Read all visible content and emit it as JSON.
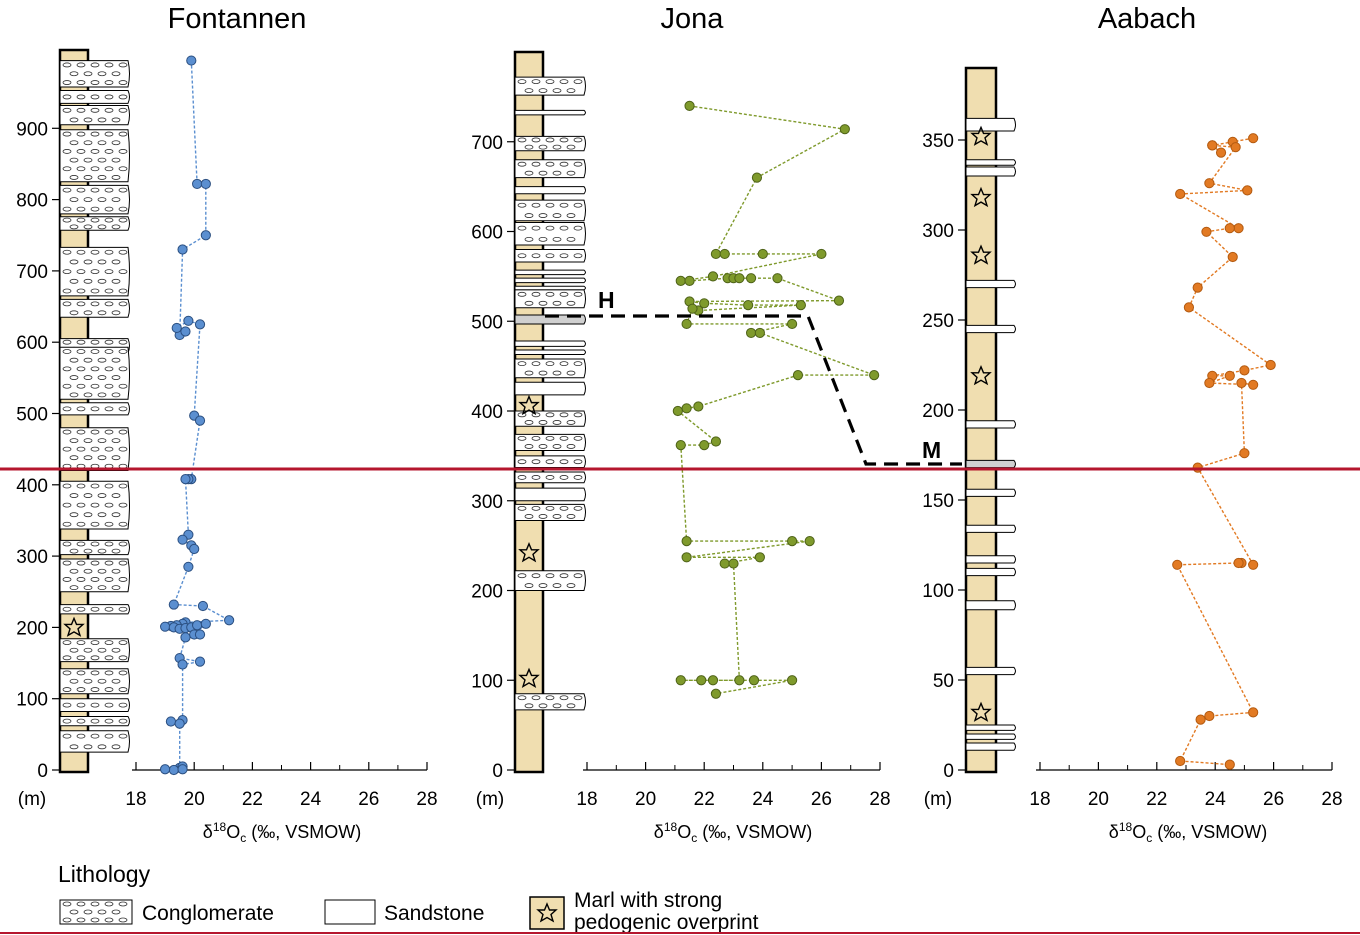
{
  "colors": {
    "marl": "#f0deb0",
    "fontannen": "#5b8fd0",
    "fontannen_edge": "#2b4f80",
    "jona": "#7f9a2c",
    "jona_edge": "#4e6218",
    "aabach": "#e27a23",
    "aabach_edge": "#b35a10",
    "boundary": "#b5162e",
    "horizon": "#000000",
    "marker_bed": "#d0d0d0"
  },
  "icons": {
    "conglomerate": "pebble-pattern",
    "sandstone": "blank-bed",
    "marl": "pedogenic-star-icon"
  },
  "legend": {
    "title": "Lithology",
    "conglomerate": "Conglomerate",
    "sandstone": "Sandstone",
    "marl_line1": "Marl with strong",
    "marl_line2": "pedogenic overprint"
  },
  "markers": {
    "H": "H",
    "M": "M"
  },
  "chart_data": [
    {
      "type": "scatter",
      "title": "Fontannen",
      "xlabel": "δ18Oc (‰, VSMOW)",
      "ylabel": "(m)",
      "xlim": [
        18,
        28
      ],
      "ylim": [
        0,
        1000
      ],
      "xticks": [
        18,
        20,
        22,
        24,
        26,
        28
      ],
      "yticks": [
        0,
        100,
        200,
        300,
        400,
        500,
        600,
        700,
        800,
        900
      ],
      "series": [
        {
          "x": [
            19.9,
            20.1,
            20.4,
            20.4,
            19.6,
            19.5,
            19.7,
            19.4,
            19.8,
            20.2,
            20.0,
            20.2,
            19.9,
            19.8,
            19.7,
            19.8,
            19.6,
            19.9,
            20.0,
            19.8,
            19.3,
            20.3,
            21.2,
            19.7,
            19.6,
            19.4,
            19.2,
            19.0,
            19.3,
            19.5,
            19.7,
            19.9,
            20.1,
            20.4,
            20.0,
            20.2,
            19.7,
            19.5,
            20.2,
            19.6,
            19.6,
            19.2,
            19.5,
            19.5,
            19.6,
            19.3,
            19.0,
            19.6
          ],
          "y": [
            995,
            822,
            822,
            750,
            730,
            610,
            615,
            620,
            630,
            625,
            497,
            490,
            408,
            408,
            408,
            330,
            323,
            315,
            310,
            285,
            232,
            230,
            210,
            207,
            205,
            203,
            202,
            201,
            200,
            198,
            199,
            200,
            203,
            205,
            190,
            190,
            186,
            157,
            152,
            148,
            70,
            68,
            65,
            3,
            5,
            0,
            1,
            1
          ]
        }
      ]
    },
    {
      "type": "scatter",
      "title": "Jona",
      "xlabel": "δ18Oc (‰, VSMOW)",
      "ylabel": "(m)",
      "xlim": [
        18,
        28
      ],
      "ylim": [
        0,
        800
      ],
      "xticks": [
        18,
        20,
        22,
        24,
        26,
        28
      ],
      "yticks": [
        0,
        100,
        200,
        300,
        400,
        500,
        600,
        700
      ],
      "series": [
        {
          "x": [
            21.5,
            26.8,
            23.8,
            22.4,
            22.7,
            24.0,
            26.0,
            22.3,
            21.2,
            21.5,
            22.8,
            23.0,
            23.2,
            23.6,
            24.5,
            26.6,
            21.5,
            22.0,
            23.5,
            25.3,
            21.8,
            21.6,
            21.4,
            25.0,
            23.6,
            23.9,
            27.8,
            25.2,
            21.8,
            21.4,
            21.1,
            22.4,
            22.0,
            21.2,
            21.4,
            25.0,
            25.6,
            21.4,
            23.9,
            22.7,
            23.0,
            23.2,
            21.2,
            21.9,
            22.3,
            23.7,
            25.0,
            22.4
          ],
          "y": [
            740,
            714,
            660,
            575,
            575,
            575,
            575,
            550,
            545,
            545,
            548,
            548,
            548,
            548,
            548,
            523,
            522,
            520,
            518,
            518,
            512,
            514,
            497,
            497,
            487,
            487,
            440,
            440,
            405,
            403,
            400,
            366,
            362,
            362,
            255,
            255,
            255,
            237,
            237,
            230,
            230,
            100,
            100,
            100,
            100,
            100,
            100,
            85
          ]
        }
      ]
    },
    {
      "type": "scatter",
      "title": "Aabach",
      "xlabel": "δ18Oc (‰, VSMOW)",
      "ylabel": "(m)",
      "xlim": [
        18,
        28
      ],
      "ylim": [
        0,
        390
      ],
      "xticks": [
        18,
        20,
        22,
        24,
        26,
        28
      ],
      "yticks": [
        0,
        50,
        100,
        150,
        200,
        250,
        300,
        350
      ],
      "series": [
        {
          "x": [
            25.3,
            24.6,
            23.9,
            24.2,
            23.9,
            24.7,
            23.8,
            25.1,
            22.8,
            24.8,
            24.5,
            23.7,
            24.6,
            23.4,
            23.1,
            25.9,
            25.0,
            23.9,
            24.5,
            23.8,
            25.3,
            24.9,
            25.0,
            23.4,
            25.3,
            24.9,
            24.8,
            22.7,
            25.3,
            23.8,
            23.5,
            22.8,
            24.5
          ],
          "y": [
            351,
            349,
            347,
            343,
            347,
            346,
            326,
            322,
            320,
            301,
            301,
            299,
            285,
            268,
            257,
            225,
            222,
            219,
            219,
            215,
            214,
            215,
            176,
            168,
            114,
            115,
            115,
            114,
            32,
            30,
            28,
            5,
            3
          ]
        }
      ]
    }
  ]
}
